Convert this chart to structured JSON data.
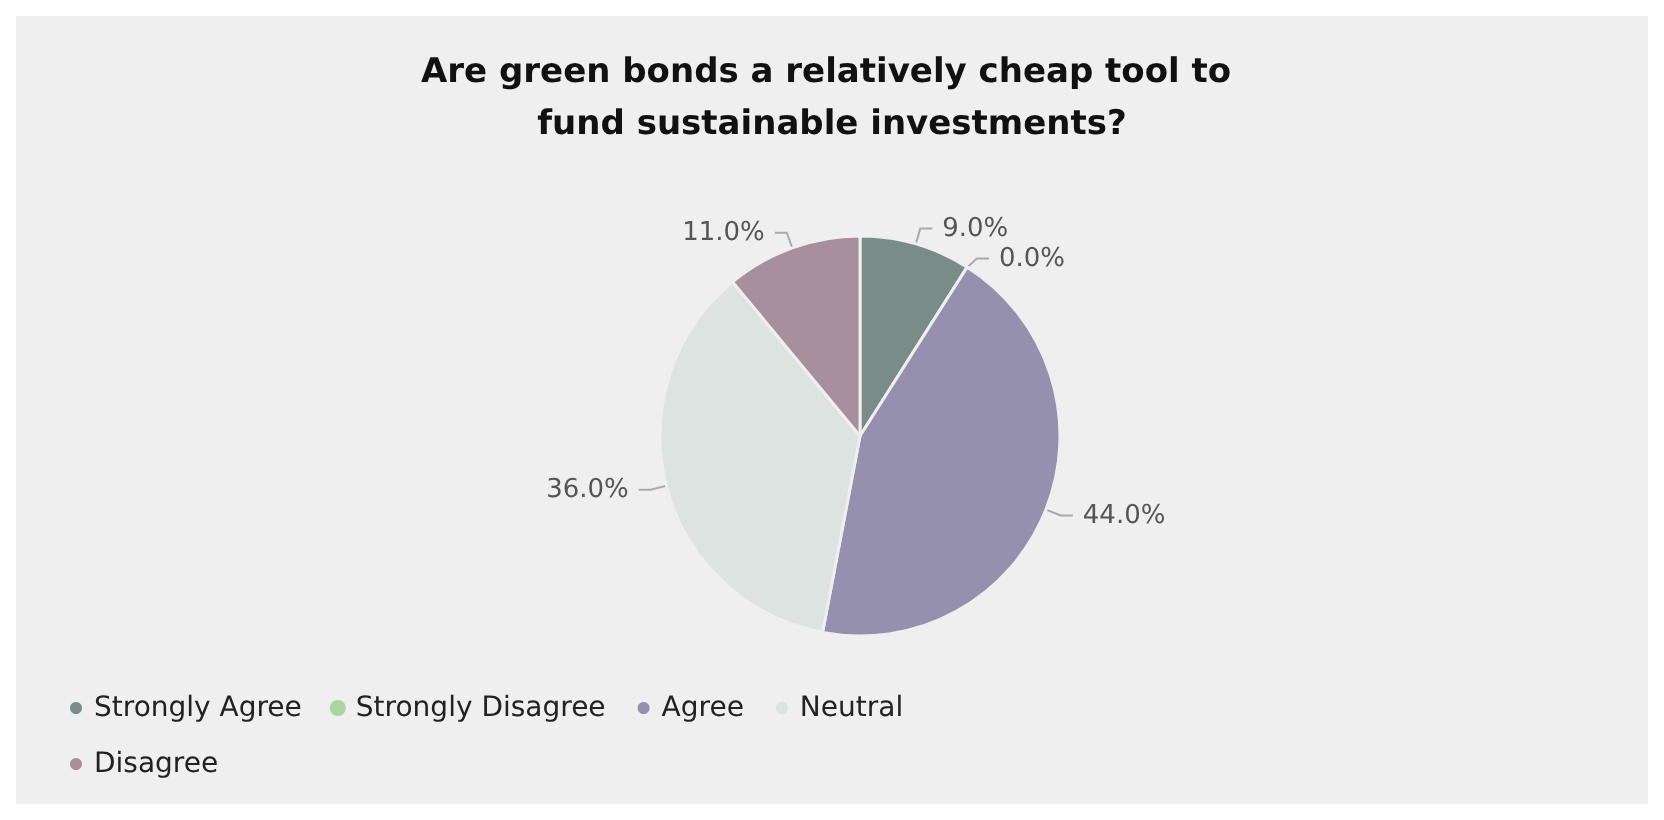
{
  "chart_data": {
    "type": "pie",
    "title": "Are green bonds a relatively cheap tool to fund sustainable investments?",
    "categories": [
      "Strongly Agree",
      "Strongly Disagree",
      "Agree",
      "Neutral",
      "Disagree"
    ],
    "values": [
      9,
      0,
      44,
      36,
      11
    ],
    "value_labels": [
      "9.0%",
      "0.0%",
      "44.0%",
      "36.0%",
      "11.0%"
    ],
    "colors": [
      "#7a8c88",
      "#a8d5a0",
      "#9490ad",
      "#dde3e0",
      "#a88f9e"
    ],
    "legend": "bottom"
  }
}
